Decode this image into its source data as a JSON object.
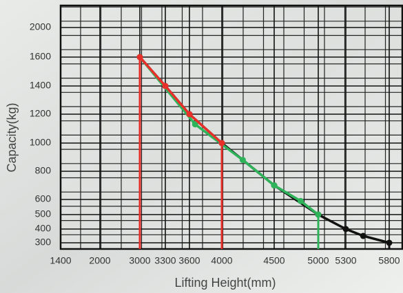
{
  "chart_data": {
    "type": "line",
    "x_label": "Lifting Height(mm)",
    "y_label": "Capacity(kg)",
    "xlim": [
      1400,
      5800
    ],
    "ylim": [
      300,
      2000
    ],
    "xticks": [
      1400,
      2000,
      3000,
      3300,
      3600,
      4000,
      4500,
      5000,
      5300,
      5800
    ],
    "yticks": [
      300,
      400,
      500,
      600,
      800,
      1000,
      1200,
      1400,
      1600,
      2000
    ],
    "grid": true,
    "series": [
      {
        "color": "#111111",
        "x": [
          3000,
          3300,
          3600,
          4000,
          4500,
          5000,
          5300,
          5500,
          5800
        ],
        "values": [
          1600,
          1400,
          1200,
          1000,
          700,
          500,
          400,
          350,
          300
        ]
      },
      {
        "color": "#2fb35a",
        "x": [
          3000,
          3670,
          4200,
          4500,
          4800,
          5000
        ],
        "values": [
          1600,
          1130,
          880,
          700,
          590,
          500
        ]
      },
      {
        "color": "#e8302a",
        "x": [
          3000,
          3300,
          3600,
          4000
        ],
        "values": [
          1600,
          1400,
          1200,
          1000
        ]
      }
    ]
  }
}
